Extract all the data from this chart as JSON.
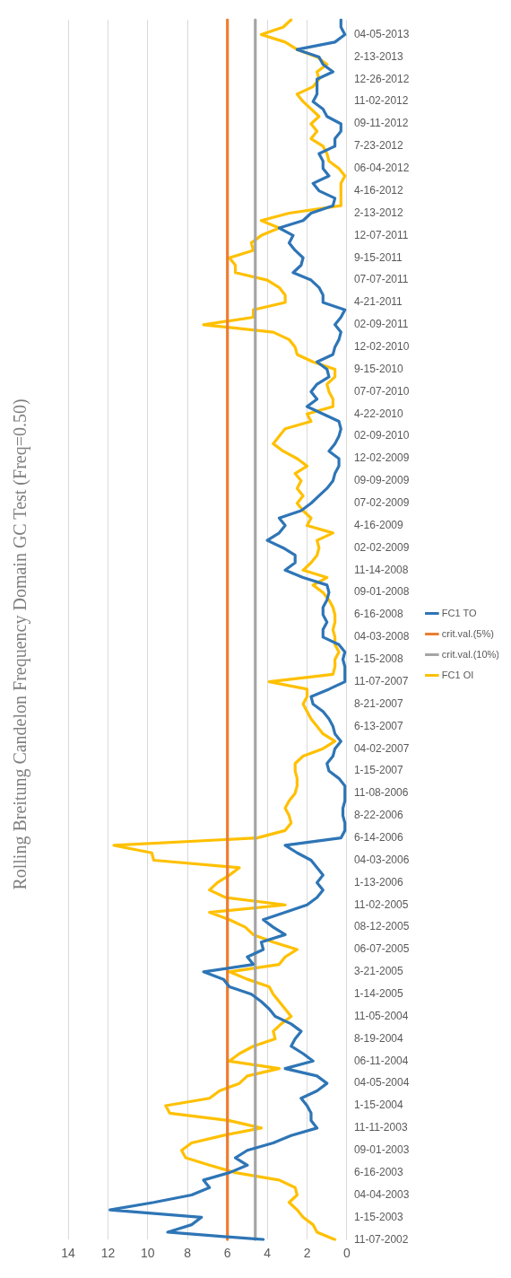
{
  "chart_data": {
    "type": "line",
    "orientation": "horizontal",
    "title": "Rolling Breitung Candelon Frequency Domain GC Test (Freq=0.50)",
    "categories": [
      null,
      null,
      "04-05-2013",
      null,
      null,
      "2-13-2013",
      null,
      null,
      "12-26-2012",
      null,
      null,
      "11-02-2012",
      null,
      null,
      "09-11-2012",
      null,
      null,
      "7-23-2012",
      null,
      null,
      "06-04-2012",
      null,
      null,
      "4-16-2012",
      null,
      null,
      "2-13-2012",
      null,
      null,
      "12-07-2011",
      null,
      null,
      "9-15-2011",
      null,
      null,
      "07-07-2011",
      null,
      null,
      "4-21-2011",
      null,
      null,
      "02-09-2011",
      null,
      null,
      "12-02-2010",
      null,
      null,
      "9-15-2010",
      null,
      null,
      "07-07-2010",
      null,
      null,
      "4-22-2010",
      null,
      null,
      "02-09-2010",
      null,
      null,
      "12-02-2009",
      null,
      null,
      "09-09-2009",
      null,
      null,
      "07-02-2009",
      null,
      null,
      "4-16-2009",
      null,
      null,
      "02-02-2009",
      null,
      null,
      "11-14-2008",
      null,
      null,
      "09-01-2008",
      null,
      null,
      "6-16-2008",
      null,
      null,
      "04-03-2008",
      null,
      null,
      "1-15-2008",
      null,
      null,
      "11-07-2007",
      null,
      null,
      "8-21-2007",
      null,
      null,
      "6-13-2007",
      null,
      null,
      "04-02-2007",
      null,
      null,
      "1-15-2007",
      null,
      null,
      "11-08-2006",
      null,
      null,
      "8-22-2006",
      null,
      null,
      "6-14-2006",
      null,
      null,
      "04-03-2006",
      null,
      null,
      "1-13-2006",
      null,
      null,
      "11-02-2005",
      null,
      null,
      "08-12-2005",
      null,
      null,
      "06-07-2005",
      null,
      null,
      "3-21-2005",
      null,
      null,
      "1-14-2005",
      null,
      null,
      "11-05-2004",
      null,
      null,
      "8-19-2004",
      null,
      null,
      "06-11-2004",
      null,
      null,
      "04-05-2004",
      null,
      null,
      "1-15-2004",
      null,
      null,
      "11-11-2003",
      null,
      null,
      "09-01-2003",
      null,
      null,
      "6-16-2003",
      null,
      null,
      "04-04-2003",
      null,
      null,
      "1-15-2003",
      null,
      null,
      "11-07-2002"
    ],
    "series": [
      {
        "name": "FC1 TO",
        "color": "#2e75b6",
        "values": [
          0.3,
          0.3,
          0.1,
          0.6,
          2.5,
          1.4,
          1.2,
          0.7,
          1.5,
          1.5,
          1.5,
          1.7,
          1.2,
          1.0,
          0.3,
          0.3,
          0.6,
          0.6,
          1.4,
          1.2,
          1.2,
          0.9,
          1.7,
          1.4,
          0.6,
          0.7,
          1.8,
          2.2,
          3.4,
          2.7,
          2.9,
          2.6,
          2.2,
          2.3,
          2.7,
          1.8,
          1.4,
          1.2,
          1.2,
          0.1,
          0.3,
          0.6,
          0.3,
          0.4,
          0.6,
          0.7,
          1.5,
          1.0,
          0.9,
          1.5,
          1.8,
          1.5,
          2.0,
          1.2,
          0.4,
          0.3,
          0.4,
          0.6,
          0.9,
          0.4,
          0.4,
          0.6,
          0.7,
          1.0,
          1.4,
          1.8,
          2.3,
          3.4,
          3.1,
          3.4,
          4.0,
          3.2,
          2.6,
          2.6,
          3.1,
          2.2,
          1.0,
          0.9,
          1.0,
          1.2,
          1.2,
          1.0,
          1.2,
          1.2,
          0.4,
          0.1,
          0.2,
          0.1,
          0.1,
          0.1,
          0.9,
          1.8,
          1.7,
          1.2,
          0.9,
          0.7,
          0.6,
          0.3,
          0.6,
          0.7,
          1.0,
          0.9,
          0.4,
          0.1,
          0.1,
          0.1,
          0.2,
          0.2,
          0.1,
          0.1,
          0.3,
          3.1,
          2.5,
          1.8,
          1.5,
          1.2,
          1.5,
          1.2,
          1.5,
          2.0,
          3.1,
          4.2,
          3.7,
          3.1,
          4.3,
          4.2,
          5.0,
          4.7,
          7.2,
          6.2,
          5.9,
          4.8,
          4.3,
          3.9,
          3.6,
          2.8,
          2.3,
          2.6,
          2.8,
          2.2,
          1.7,
          3.1,
          1.5,
          1.0,
          1.5,
          2.3,
          2.0,
          1.8,
          1.8,
          1.5,
          2.8,
          3.7,
          5.0,
          5.6,
          5.0,
          5.9,
          7.2,
          6.9,
          7.8,
          9.7,
          11.9,
          7.3,
          7.8,
          9.0,
          4.2
        ]
      },
      {
        "name": "crit.val.(5%)",
        "color": "#ed7d31",
        "values": [
          6,
          6,
          6,
          6,
          6,
          6,
          6,
          6,
          6,
          6,
          6,
          6,
          6,
          6,
          6,
          6,
          6,
          6,
          6,
          6,
          6,
          6,
          6,
          6,
          6,
          6,
          6,
          6,
          6,
          6,
          6,
          6,
          6,
          6,
          6,
          6,
          6,
          6,
          6,
          6,
          6,
          6,
          6,
          6,
          6,
          6,
          6,
          6,
          6,
          6,
          6,
          6,
          6,
          6,
          6,
          6,
          6,
          6,
          6,
          6,
          6,
          6,
          6,
          6,
          6,
          6,
          6,
          6,
          6,
          6,
          6,
          6,
          6,
          6,
          6,
          6,
          6,
          6,
          6,
          6,
          6,
          6,
          6,
          6,
          6,
          6,
          6,
          6,
          6,
          6,
          6,
          6,
          6,
          6,
          6,
          6,
          6,
          6,
          6,
          6,
          6,
          6,
          6,
          6,
          6,
          6,
          6,
          6,
          6,
          6,
          6,
          6,
          6,
          6,
          6,
          6,
          6,
          6,
          6,
          6,
          6,
          6,
          6,
          6,
          6,
          6,
          6,
          6,
          6,
          6,
          6,
          6,
          6,
          6,
          6,
          6,
          6,
          6,
          6,
          6,
          6,
          6,
          6,
          6,
          6,
          6,
          6,
          6,
          6,
          6,
          6,
          6,
          6,
          6,
          6,
          6,
          6,
          6,
          6,
          6,
          6,
          6,
          6,
          6,
          6
        ]
      },
      {
        "name": "crit.val.(10%)",
        "color": "#a5a5a5",
        "values": [
          4.6,
          4.6,
          4.6,
          4.6,
          4.6,
          4.6,
          4.6,
          4.6,
          4.6,
          4.6,
          4.6,
          4.6,
          4.6,
          4.6,
          4.6,
          4.6,
          4.6,
          4.6,
          4.6,
          4.6,
          4.6,
          4.6,
          4.6,
          4.6,
          4.6,
          4.6,
          4.6,
          4.6,
          4.6,
          4.6,
          4.6,
          4.6,
          4.6,
          4.6,
          4.6,
          4.6,
          4.6,
          4.6,
          4.6,
          4.6,
          4.6,
          4.6,
          4.6,
          4.6,
          4.6,
          4.6,
          4.6,
          4.6,
          4.6,
          4.6,
          4.6,
          4.6,
          4.6,
          4.6,
          4.6,
          4.6,
          4.6,
          4.6,
          4.6,
          4.6,
          4.6,
          4.6,
          4.6,
          4.6,
          4.6,
          4.6,
          4.6,
          4.6,
          4.6,
          4.6,
          4.6,
          4.6,
          4.6,
          4.6,
          4.6,
          4.6,
          4.6,
          4.6,
          4.6,
          4.6,
          4.6,
          4.6,
          4.6,
          4.6,
          4.6,
          4.6,
          4.6,
          4.6,
          4.6,
          4.6,
          4.6,
          4.6,
          4.6,
          4.6,
          4.6,
          4.6,
          4.6,
          4.6,
          4.6,
          4.6,
          4.6,
          4.6,
          4.6,
          4.6,
          4.6,
          4.6,
          4.6,
          4.6,
          4.6,
          4.6,
          4.6,
          4.6,
          4.6,
          4.6,
          4.6,
          4.6,
          4.6,
          4.6,
          4.6,
          4.6,
          4.6,
          4.6,
          4.6,
          4.6,
          4.6,
          4.6,
          4.6,
          4.6,
          4.6,
          4.6,
          4.6,
          4.6,
          4.6,
          4.6,
          4.6,
          4.6,
          4.6,
          4.6,
          4.6,
          4.6,
          4.6,
          4.6,
          4.6,
          4.6,
          4.6,
          4.6,
          4.6,
          4.6,
          4.6,
          4.6,
          4.6,
          4.6,
          4.6,
          4.6,
          4.6,
          4.6,
          4.6,
          4.6,
          4.6,
          4.6,
          4.6,
          4.6,
          4.6,
          4.6,
          4.6
        ]
      },
      {
        "name": "FC1 OI",
        "color": "#ffc000",
        "values": [
          2.8,
          3.2,
          4.3,
          3.1,
          2.5,
          1.5,
          1.0,
          1.5,
          1.4,
          1.7,
          2.5,
          2.2,
          1.8,
          1.4,
          1.8,
          1.5,
          1.8,
          1.2,
          1.0,
          0.9,
          0.4,
          0.1,
          0.3,
          0.3,
          0.3,
          0.3,
          2.9,
          4.3,
          3.4,
          4.3,
          4.8,
          4.7,
          5.9,
          5.6,
          5.6,
          4.0,
          3.4,
          3.1,
          3.1,
          4.7,
          4.7,
          7.2,
          3.7,
          2.9,
          2.6,
          2.5,
          1.7,
          0.6,
          0.6,
          1.0,
          0.9,
          0.7,
          0.7,
          2.0,
          1.8,
          3.1,
          3.4,
          3.7,
          3.2,
          2.5,
          2.0,
          2.6,
          2.3,
          2.5,
          2.2,
          2.5,
          2.2,
          1.8,
          2.0,
          0.7,
          1.5,
          1.4,
          1.5,
          1.8,
          2.2,
          1.0,
          1.7,
          1.2,
          0.9,
          0.7,
          0.6,
          0.6,
          0.7,
          0.6,
          0.6,
          0.4,
          0.6,
          0.6,
          0.7,
          3.9,
          2.0,
          2.0,
          2.2,
          2.0,
          1.8,
          1.5,
          1.2,
          0.6,
          1.2,
          2.2,
          2.6,
          2.6,
          2.5,
          2.5,
          2.6,
          2.9,
          3.1,
          2.9,
          2.8,
          3.1,
          4.5,
          11.7,
          9.8,
          9.7,
          5.4,
          5.9,
          6.5,
          6.9,
          6.1,
          3.1,
          6.9,
          5.9,
          5.1,
          4.7,
          3.7,
          2.5,
          3.1,
          3.4,
          5.9,
          5.0,
          3.9,
          3.7,
          3.4,
          3.1,
          2.8,
          3.3,
          3.7,
          3.6,
          4.7,
          5.4,
          5.9,
          3.4,
          5.0,
          5.4,
          6.4,
          6.9,
          9.1,
          8.9,
          5.9,
          4.3,
          6.2,
          7.8,
          8.3,
          8.1,
          6.9,
          5.6,
          3.4,
          2.6,
          2.5,
          2.9,
          2.5,
          2.2,
          1.7,
          1.5,
          0.6
        ]
      }
    ],
    "xlim": [
      14,
      0
    ],
    "xticks": [
      0,
      2,
      4,
      6,
      8,
      10,
      12,
      14
    ],
    "grid": "x",
    "legend": "right"
  }
}
